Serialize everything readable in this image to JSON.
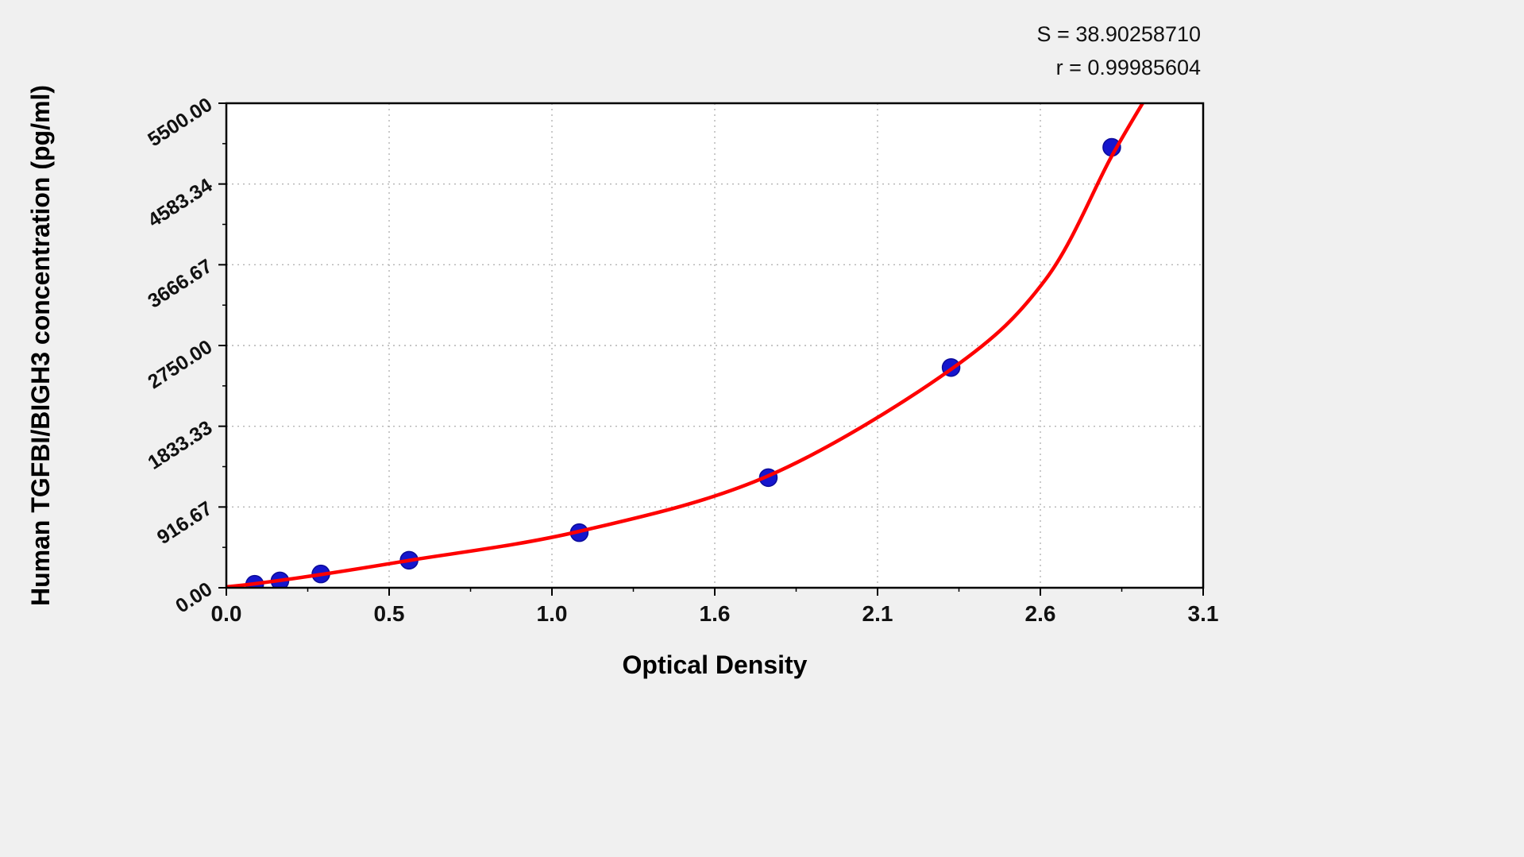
{
  "figure": {
    "background": "#f0f0f0",
    "plot_background": "#ffffff",
    "border_color": "#000000",
    "grid_color": "#b4b4b4"
  },
  "chart_data": {
    "type": "scatter",
    "title": "",
    "xlabel": "Optical Density",
    "ylabel": "Human TGFBI/BIGH3 concentration (pg/ml)",
    "xlim": [
      0,
      3.1
    ],
    "ylim": [
      0,
      5500
    ],
    "grid": true,
    "legend_position": "none",
    "x_ticks": [
      {
        "value": 0.0,
        "label": "0.0"
      },
      {
        "value": 0.5166667,
        "label": "0.5"
      },
      {
        "value": 1.0333333,
        "label": "1.0"
      },
      {
        "value": 1.55,
        "label": "1.6"
      },
      {
        "value": 2.0666667,
        "label": "2.1"
      },
      {
        "value": 2.5833333,
        "label": "2.6"
      },
      {
        "value": 3.1,
        "label": "3.1"
      }
    ],
    "y_ticks": [
      {
        "value": 0,
        "label": "0.00"
      },
      {
        "value": 916.67,
        "label": "916.67"
      },
      {
        "value": 1833.33,
        "label": "1833.33"
      },
      {
        "value": 2750,
        "label": "2750.00"
      },
      {
        "value": 3666.67,
        "label": "3666.67"
      },
      {
        "value": 4583.34,
        "label": "4583.34"
      },
      {
        "value": 5500,
        "label": "5500.00"
      }
    ],
    "series": [
      {
        "name": "standard-points",
        "type": "scatter",
        "color": "#1616cd",
        "marker_radius": 11,
        "points": [
          {
            "x": 0.09,
            "y": 39.06
          },
          {
            "x": 0.17,
            "y": 78.13
          },
          {
            "x": 0.3,
            "y": 156.25
          },
          {
            "x": 0.58,
            "y": 312.5
          },
          {
            "x": 1.12,
            "y": 625
          },
          {
            "x": 1.72,
            "y": 1250
          },
          {
            "x": 2.3,
            "y": 2500
          },
          {
            "x": 2.81,
            "y": 5000
          }
        ]
      },
      {
        "name": "fitted-curve",
        "type": "line",
        "color": "#fe0000",
        "stroke_width": 4.5,
        "points": [
          {
            "x": 0.0,
            "y": 10
          },
          {
            "x": 0.09,
            "y": 45
          },
          {
            "x": 0.3,
            "y": 150
          },
          {
            "x": 0.58,
            "y": 310
          },
          {
            "x": 1.12,
            "y": 640
          },
          {
            "x": 1.72,
            "y": 1270
          },
          {
            "x": 2.3,
            "y": 2480
          },
          {
            "x": 2.6,
            "y": 3500
          },
          {
            "x": 2.81,
            "y": 4900
          },
          {
            "x": 2.95,
            "y": 5750
          }
        ]
      }
    ],
    "annotations": {
      "s_label": "S = 38.90258710",
      "r_label": "r = 0.99985604"
    }
  }
}
